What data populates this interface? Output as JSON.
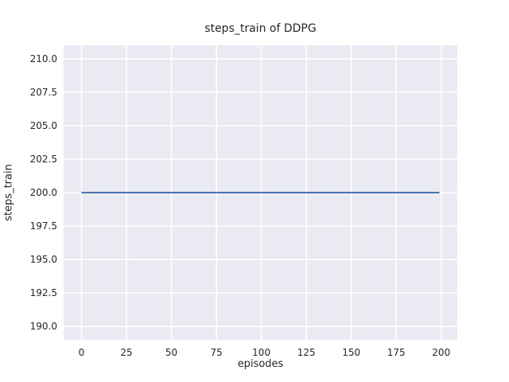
{
  "figure": {
    "background_color": "#ffffff"
  },
  "chart_data": {
    "type": "line",
    "title": "steps_train of DDPG",
    "xlabel": "episodes",
    "ylabel": "steps_train",
    "xlim": [
      -9.95,
      208.95
    ],
    "ylim": [
      189,
      211
    ],
    "xticks": [
      "0",
      "25",
      "50",
      "75",
      "100",
      "125",
      "150",
      "175",
      "200"
    ],
    "yticks": [
      "190.0",
      "192.5",
      "195.0",
      "197.5",
      "200.0",
      "202.5",
      "205.0",
      "207.5",
      "210.0"
    ],
    "grid": true,
    "legend": "none",
    "plot_background_color": "#eaeaf2",
    "grid_color": "#ffffff",
    "text_color": "#262626",
    "series": [
      {
        "name": "steps_train",
        "color": "#4c72b0",
        "line_width": 2,
        "points": [
          [
            0,
            200
          ],
          [
            199,
            200
          ]
        ],
        "description": "constant value 200 for all episodes 0-199"
      }
    ]
  }
}
